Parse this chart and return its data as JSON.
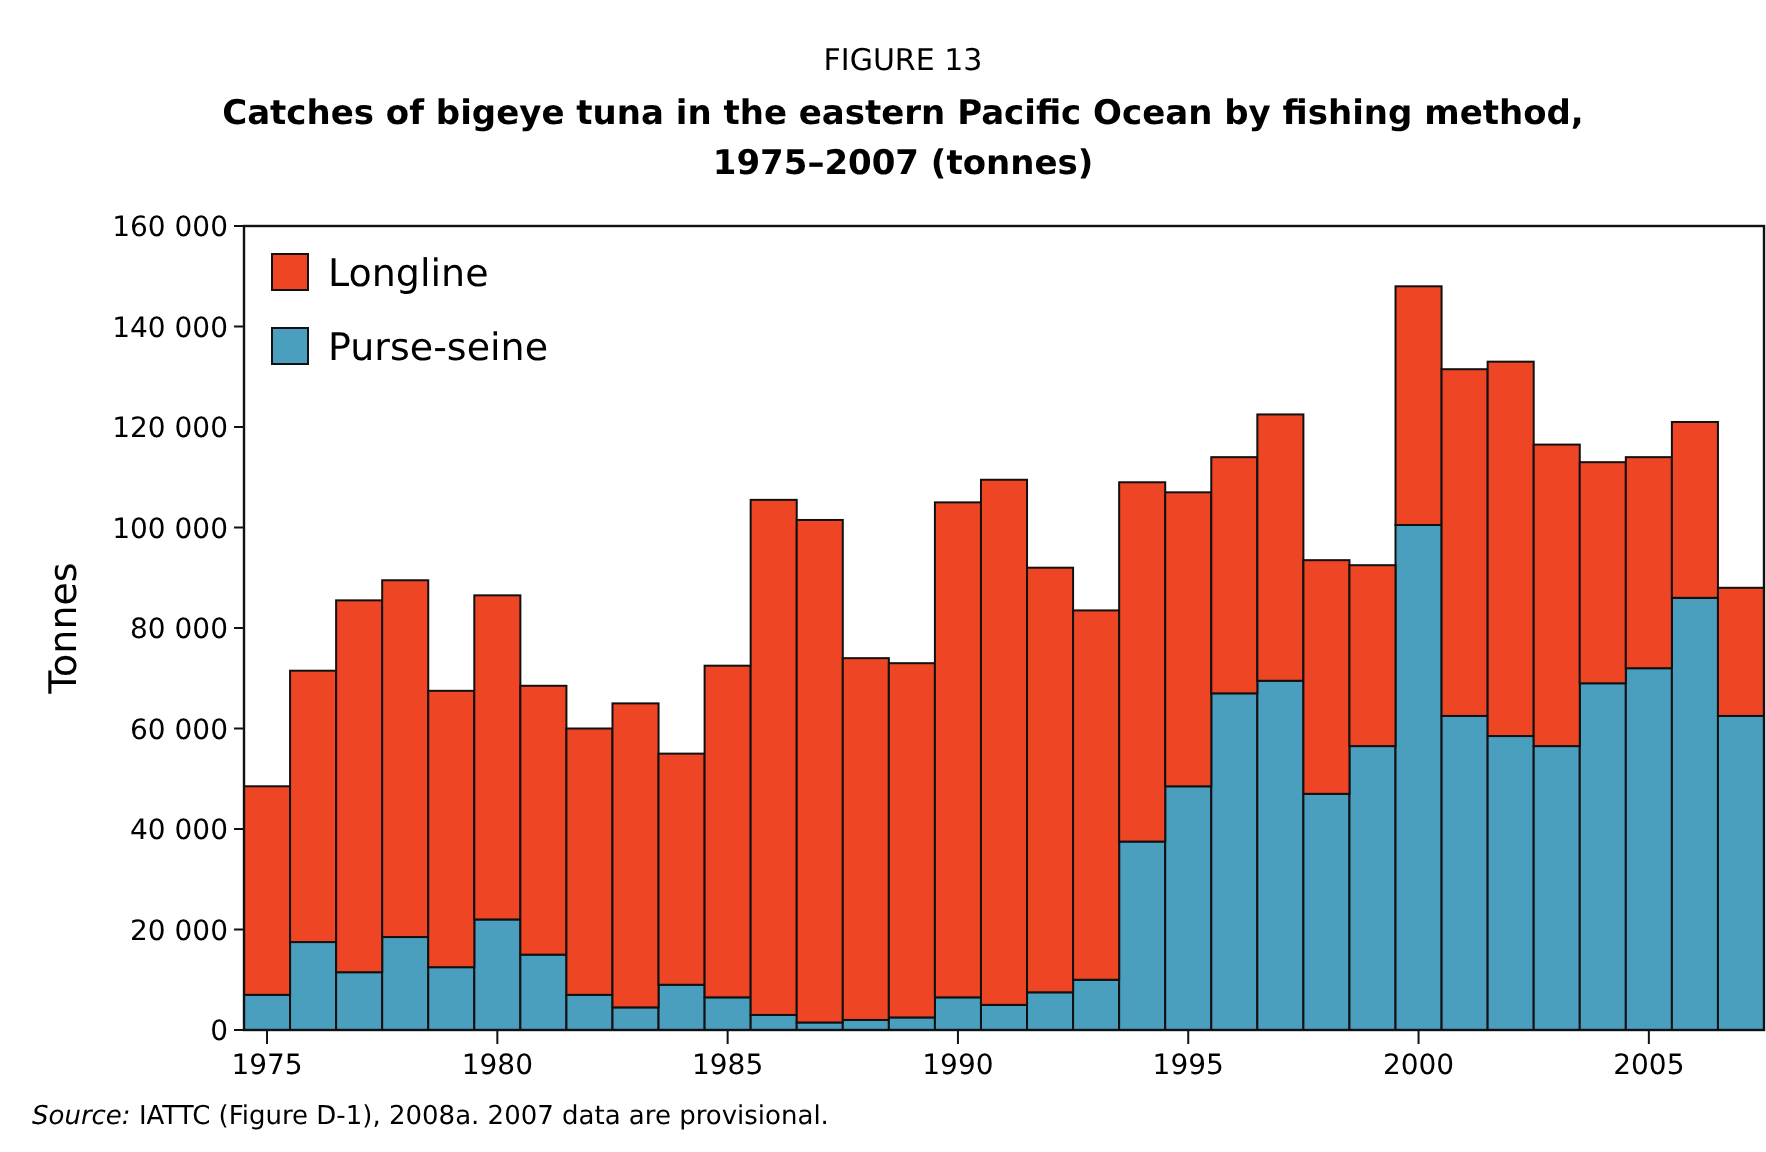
{
  "chart_data": {
    "type": "bar",
    "stacked": true,
    "title": "Catches of bigeye tuna in the eastern Pacific Ocean by fishing method, 1975–2007 (tonnes)",
    "subtitle": "FIGURE 13",
    "ylabel": "Tonnes",
    "x": [
      1975,
      1976,
      1977,
      1978,
      1979,
      1980,
      1981,
      1982,
      1983,
      1984,
      1985,
      1986,
      1987,
      1988,
      1989,
      1990,
      1991,
      1992,
      1993,
      1994,
      1995,
      1996,
      1997,
      1998,
      1999,
      2000,
      2001,
      2002,
      2003,
      2004,
      2005,
      2006,
      2007
    ],
    "xlim": [
      1974.5,
      2007.5
    ],
    "xticks": [
      1975,
      1980,
      1985,
      1990,
      1995,
      2000,
      2005
    ],
    "ylim": [
      0,
      160000
    ],
    "yticks": [
      0,
      {
        "value": 20000,
        "label": "20 000"
      },
      {
        "value": 40000,
        "label": "40 000"
      },
      {
        "value": 60000,
        "label": "60 000"
      },
      {
        "value": 80000,
        "label": "80 000"
      },
      {
        "value": 100000,
        "label": "100 000"
      },
      {
        "value": 120000,
        "label": "120 000"
      },
      {
        "value": 140000,
        "label": "140 000"
      },
      {
        "value": 160000,
        "label": "160 000"
      }
    ],
    "series": [
      {
        "name": "Purse-seine",
        "color": "#4a9fbf",
        "values": [
          7000,
          17500,
          11500,
          18500,
          12500,
          22000,
          15000,
          7000,
          4500,
          9000,
          6500,
          3000,
          1500,
          2000,
          2500,
          6500,
          5000,
          7500,
          10000,
          37500,
          48500,
          67000,
          69500,
          47000,
          56500,
          100500,
          62500,
          58500,
          56500,
          69000,
          72000,
          86000,
          62500
        ]
      },
      {
        "name": "Longline",
        "color": "#ee4525",
        "values": [
          41500,
          54000,
          74000,
          71000,
          55000,
          64500,
          53500,
          53000,
          60500,
          46000,
          66000,
          102500,
          100000,
          72000,
          70500,
          98500,
          104500,
          84500,
          73500,
          71500,
          58500,
          47000,
          53000,
          46500,
          36000,
          47500,
          69000,
          74500,
          60000,
          44000,
          42000,
          35000,
          25500
        ]
      }
    ],
    "legend": "top left",
    "grid": false,
    "annotations": [
      "Source:  IATTC (Figure D-1), 2008a. 2007 data are provisional."
    ]
  }
}
